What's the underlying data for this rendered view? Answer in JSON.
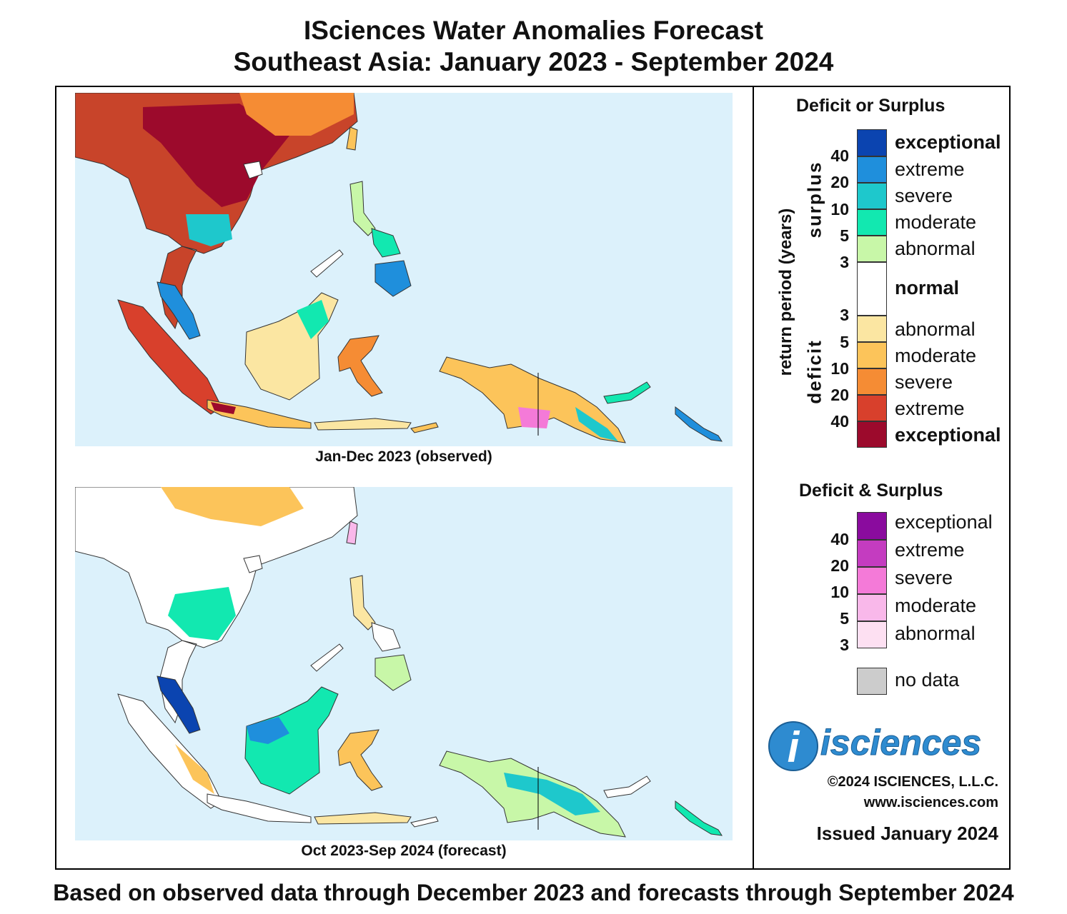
{
  "title_line1": "ISciences Water Anomalies Forecast",
  "title_line2": "Southeast Asia: January 2023 - September 2024",
  "maps": [
    {
      "caption": "Jan-Dec 2023 (observed)"
    },
    {
      "caption": "Oct 2023-Sep 2024 (forecast)"
    }
  ],
  "legend": {
    "deficit_surplus_title": "Deficit or Surplus",
    "axis_label": "return period (years)",
    "surplus_label": "surplus",
    "deficit_label": "deficit",
    "surplus_classes": [
      {
        "label": "exceptional",
        "color": "#0b44b0"
      },
      {
        "label": "extreme",
        "color": "#1f8fdc"
      },
      {
        "label": "severe",
        "color": "#1ec8cc"
      },
      {
        "label": "moderate",
        "color": "#12e8b0"
      },
      {
        "label": "abnormal",
        "color": "#c8f7a8"
      }
    ],
    "normal": {
      "label": "normal",
      "color": "#ffffff"
    },
    "deficit_classes": [
      {
        "label": "abnormal",
        "color": "#fbe6a2"
      },
      {
        "label": "moderate",
        "color": "#fcc45a"
      },
      {
        "label": "severe",
        "color": "#f58c34"
      },
      {
        "label": "extreme",
        "color": "#d8402c"
      },
      {
        "label": "exceptional",
        "color": "#9c0a2c"
      }
    ],
    "surplus_ticks": [
      "40",
      "20",
      "10",
      "5",
      "3"
    ],
    "deficit_ticks": [
      "3",
      "5",
      "10",
      "20",
      "40"
    ],
    "both_title": "Deficit & Surplus",
    "both_classes": [
      {
        "label": "exceptional",
        "color": "#8a0b9e"
      },
      {
        "label": "extreme",
        "color": "#c43cc0"
      },
      {
        "label": "severe",
        "color": "#f47ad8"
      },
      {
        "label": "moderate",
        "color": "#f9b8ea"
      },
      {
        "label": "abnormal",
        "color": "#fde0f2"
      }
    ],
    "both_ticks": [
      "40",
      "20",
      "10",
      "5",
      "3"
    ],
    "no_data": {
      "label": "no data",
      "color": "#cccccc"
    }
  },
  "logo_text": "isciences",
  "logo_letter": "i",
  "copyright": "©2024 ISCIENCES, L.L.C.",
  "website": "www.isciences.com",
  "issued": "Issued January 2024",
  "footer": "Based on observed data through December 2023 and forecasts through September 2024",
  "colors": {
    "ocean": "#dcf1fb",
    "land": "#ffffff",
    "border": "#333333"
  }
}
